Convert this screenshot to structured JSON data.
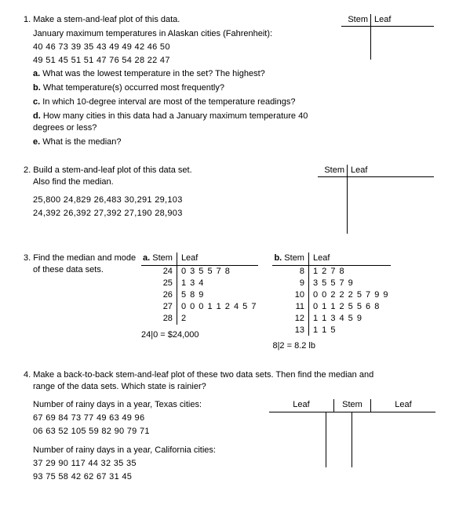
{
  "q1": {
    "num": "1.",
    "prompt": "Make a stem-and-leaf plot of this data.",
    "data_title": "January maximum temperatures in Alaskan cities (Fahrenheit):",
    "data_l1": "40  46  73  39  35  43  49  49  42  46  50",
    "data_l2": "49  51  45  51  51  47  76  54  28  22  47",
    "a": "What was the lowest temperature in the set?      The highest?",
    "b": "What temperature(s) occurred most frequently?",
    "c": "In which 10-degree interval are most of the temperature readings?",
    "d": "How many cities in this data had a January maximum temperature 40 degrees or less?",
    "e": "What is the median?",
    "hdr_stem": "Stem",
    "hdr_leaf": "Leaf"
  },
  "q2": {
    "num": "2.",
    "prompt1": "Build a stem-and-leaf plot of this data set.",
    "prompt2": "Also find the median.",
    "data_l1": "25,800   24,829   26,483   30,291   29,103",
    "data_l2": "24,392   26,392   27,392   27,190   28,903",
    "hdr_stem": "Stem",
    "hdr_leaf": "Leaf"
  },
  "q3": {
    "num": "3.",
    "prompt1": "Find the median and mode",
    "prompt2": "of these data sets.",
    "a_label": "a.",
    "b_label": "b.",
    "hdr_stem": "Stem",
    "hdr_leaf": "Leaf",
    "a_rows": [
      {
        "s": "24",
        "l": "0 3 5 5 7 8"
      },
      {
        "s": "25",
        "l": "1 3 4"
      },
      {
        "s": "26",
        "l": "5 8 9"
      },
      {
        "s": "27",
        "l": "0 0 0 1 1 2 4 5 7"
      },
      {
        "s": "28",
        "l": "2"
      }
    ],
    "a_key": "24|0 = $24,000",
    "b_rows": [
      {
        "s": "8",
        "l": "1 2 7 8"
      },
      {
        "s": "9",
        "l": "3 5 5 7 9"
      },
      {
        "s": "10",
        "l": "0 0 2 2 2 5 7 9 9"
      },
      {
        "s": "11",
        "l": "0 1 1 2 5 5 6 8"
      },
      {
        "s": "12",
        "l": "1 1 3 4 5 9"
      },
      {
        "s": "13",
        "l": "1 1 5"
      }
    ],
    "b_key": "8|2 = 8.2 lb"
  },
  "q4": {
    "num": "4.",
    "prompt1": "Make a back-to-back stem-and-leaf plot of these two data sets. Then find the median and",
    "prompt2": "range of the data sets. Which state is rainier?",
    "tx_title": "Number of rainy days in a year, Texas cities:",
    "tx_l1": "67  69  84  73  77  49  63  49  96",
    "tx_l2": "06  63  52  105  59  82  90  79   71",
    "ca_title": "Number of rainy days in a year, California cities:",
    "ca_l1": "37  29  90  117  44  32  35  35",
    "ca_l2": "93  75  58  42  62  67  31  45",
    "hdr_leaf": "Leaf",
    "hdr_stem": "Stem"
  }
}
